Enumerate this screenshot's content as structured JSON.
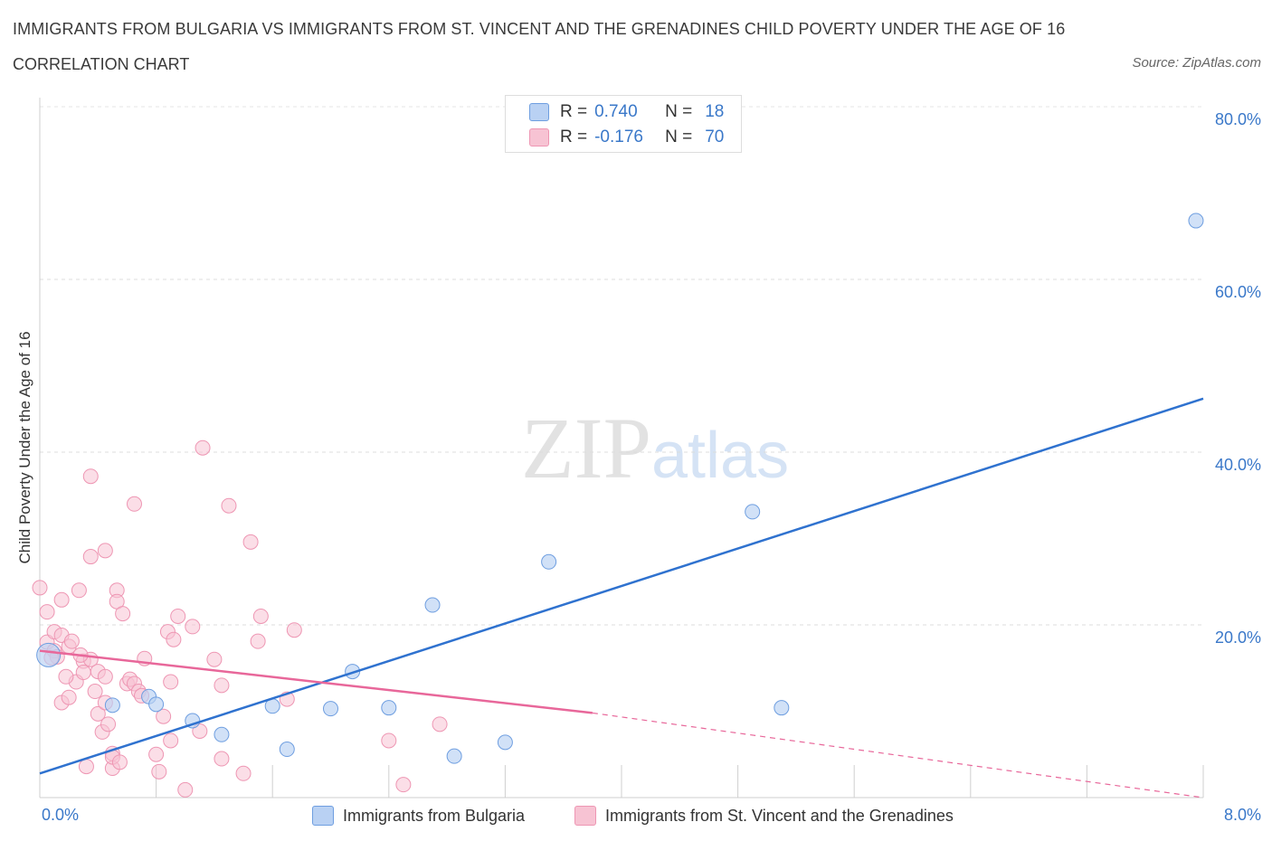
{
  "header": {
    "title": "IMMIGRANTS FROM BULGARIA VS IMMIGRANTS FROM ST. VINCENT AND THE GRENADINES CHILD POVERTY UNDER THE AGE OF 16",
    "subtitle": "CORRELATION CHART",
    "source": "Source: ZipAtlas.com"
  },
  "legend": {
    "r_label": "R =",
    "n_label": "N =",
    "rows": [
      {
        "r": "0.740",
        "n": "18",
        "color": "#a9c8f0"
      },
      {
        "r": "-0.176",
        "n": "70",
        "color": "#f6b8cb"
      }
    ]
  },
  "colors": {
    "blue": "#2f72cf",
    "blue_fill": "#b9d1f3",
    "pink": "#e8679a",
    "pink_fill": "#f7c3d3",
    "tick_text": "#3a78c9"
  },
  "chart_data": {
    "type": "scatter",
    "title": "IMMIGRANTS FROM BULGARIA VS IMMIGRANTS FROM ST. VINCENT AND THE GRENADINES CHILD POVERTY UNDER THE AGE OF 16",
    "subtitle": "CORRELATION CHART",
    "xlabel": "",
    "ylabel": "Child Poverty Under the Age of 16",
    "xlim": [
      0,
      8
    ],
    "ylim": [
      0,
      80
    ],
    "x_ticks_labels": [
      "0.0%",
      "8.0%"
    ],
    "y_ticks": [
      20,
      40,
      60,
      80
    ],
    "y_ticks_labels": [
      "20.0%",
      "40.0%",
      "60.0%",
      "80.0%"
    ],
    "grid": true,
    "legend_position": "top-center",
    "series": [
      {
        "name": "Immigrants from Bulgaria",
        "color": "#2f72cf",
        "points": [
          [
            0.06,
            16.5
          ],
          [
            0.5,
            10.7
          ],
          [
            0.75,
            11.7
          ],
          [
            0.8,
            10.8
          ],
          [
            1.05,
            8.9
          ],
          [
            1.25,
            7.3
          ],
          [
            1.6,
            10.6
          ],
          [
            1.7,
            5.6
          ],
          [
            2.0,
            10.3
          ],
          [
            2.15,
            14.6
          ],
          [
            2.4,
            10.4
          ],
          [
            2.7,
            22.3
          ],
          [
            2.85,
            4.8
          ],
          [
            3.2,
            6.4
          ],
          [
            3.5,
            27.3
          ],
          [
            4.9,
            33.1
          ],
          [
            5.1,
            10.4
          ],
          [
            7.95,
            66.8
          ]
        ],
        "trend": {
          "x": [
            0,
            8
          ],
          "y": [
            2.8,
            46.2
          ]
        }
      },
      {
        "name": "Immigrants from St. Vincent and the Grenadines",
        "color": "#e8679a",
        "points": [
          [
            0.0,
            24.3
          ],
          [
            0.05,
            21.5
          ],
          [
            0.05,
            18.0
          ],
          [
            0.1,
            17.0
          ],
          [
            0.1,
            19.2
          ],
          [
            0.12,
            16.3
          ],
          [
            0.15,
            11.0
          ],
          [
            0.15,
            22.9
          ],
          [
            0.15,
            18.8
          ],
          [
            0.2,
            11.6
          ],
          [
            0.2,
            17.5
          ],
          [
            0.22,
            18.1
          ],
          [
            0.25,
            13.4
          ],
          [
            0.27,
            24.0
          ],
          [
            0.3,
            15.8
          ],
          [
            0.3,
            14.5
          ],
          [
            0.32,
            3.6
          ],
          [
            0.35,
            27.9
          ],
          [
            0.35,
            16.0
          ],
          [
            0.35,
            37.2
          ],
          [
            0.4,
            9.7
          ],
          [
            0.4,
            14.6
          ],
          [
            0.43,
            7.6
          ],
          [
            0.45,
            11.0
          ],
          [
            0.45,
            14.0
          ],
          [
            0.45,
            28.6
          ],
          [
            0.47,
            8.5
          ],
          [
            0.5,
            5.1
          ],
          [
            0.5,
            3.4
          ],
          [
            0.5,
            4.7
          ],
          [
            0.53,
            24.0
          ],
          [
            0.53,
            22.7
          ],
          [
            0.55,
            4.1
          ],
          [
            0.57,
            21.3
          ],
          [
            0.6,
            13.2
          ],
          [
            0.62,
            13.7
          ],
          [
            0.65,
            13.2
          ],
          [
            0.65,
            34.0
          ],
          [
            0.68,
            12.3
          ],
          [
            0.7,
            11.8
          ],
          [
            0.72,
            16.1
          ],
          [
            0.8,
            5.0
          ],
          [
            0.82,
            3.0
          ],
          [
            0.85,
            9.4
          ],
          [
            0.88,
            19.2
          ],
          [
            0.9,
            13.4
          ],
          [
            0.9,
            6.6
          ],
          [
            0.92,
            18.3
          ],
          [
            0.95,
            21.0
          ],
          [
            1.0,
            0.9
          ],
          [
            1.05,
            19.8
          ],
          [
            1.1,
            7.7
          ],
          [
            1.12,
            40.5
          ],
          [
            1.2,
            16.0
          ],
          [
            1.25,
            13.0
          ],
          [
            1.25,
            4.5
          ],
          [
            1.3,
            33.8
          ],
          [
            1.4,
            2.8
          ],
          [
            1.45,
            29.6
          ],
          [
            1.5,
            18.1
          ],
          [
            1.52,
            21.0
          ],
          [
            1.7,
            11.4
          ],
          [
            1.75,
            19.4
          ],
          [
            2.4,
            6.6
          ],
          [
            2.5,
            1.5
          ],
          [
            2.75,
            8.5
          ],
          [
            0.18,
            14.0
          ],
          [
            0.28,
            16.5
          ],
          [
            0.08,
            16.2
          ],
          [
            0.38,
            12.3
          ]
        ],
        "trend": {
          "x": [
            0,
            3.8
          ],
          "y": [
            17.0,
            9.8
          ]
        },
        "trend_extension": {
          "x": [
            3.8,
            8
          ],
          "y": [
            9.8,
            0
          ]
        }
      }
    ]
  },
  "bottom_legend": [
    {
      "label": "Immigrants from Bulgaria",
      "color": "#b9d1f3"
    },
    {
      "label": "Immigrants from St. Vincent and the Grenadines",
      "color": "#f7c3d3"
    }
  ],
  "watermark": {
    "zip": "ZIP",
    "atlas": "atlas"
  }
}
